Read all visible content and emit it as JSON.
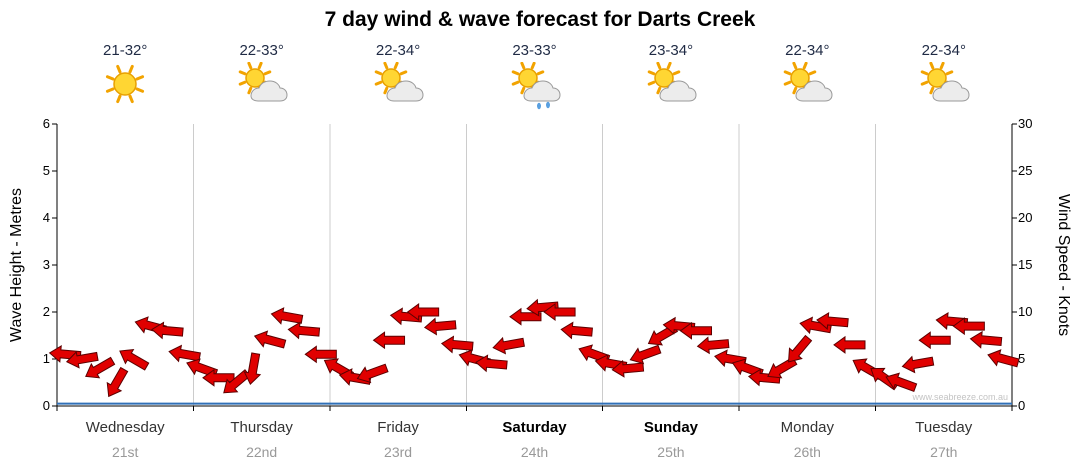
{
  "title": "7 day wind & wave forecast for Darts Creek",
  "watermark": "www.seabreeze.com.au",
  "axes": {
    "left_label": "Wave Height - Metres",
    "right_label": "Wind Speed - Knots"
  },
  "days": [
    {
      "name": "Wednesday",
      "date": "21st",
      "temperature": "21-32°",
      "icon": "sunny",
      "weekend": false
    },
    {
      "name": "Thursday",
      "date": "22nd",
      "temperature": "22-33°",
      "icon": "sun-cloud",
      "weekend": false
    },
    {
      "name": "Friday",
      "date": "23rd",
      "temperature": "22-34°",
      "icon": "sun-cloud",
      "weekend": false
    },
    {
      "name": "Saturday",
      "date": "24th",
      "temperature": "23-33°",
      "icon": "sun-cloud-rain",
      "weekend": true
    },
    {
      "name": "Sunday",
      "date": "25th",
      "temperature": "23-34°",
      "icon": "sun-cloud",
      "weekend": true
    },
    {
      "name": "Monday",
      "date": "26th",
      "temperature": "22-34°",
      "icon": "sun-cloud",
      "weekend": false
    },
    {
      "name": "Tuesday",
      "date": "27th",
      "temperature": "22-34°",
      "icon": "sun-cloud",
      "weekend": false
    }
  ],
  "colors": {
    "arrow_fill": "#e00000",
    "arrow_outline": "#5c0000",
    "wave_line": "#3070b8",
    "day_separator": "#cccccc",
    "axis": "#000000",
    "temperature_text": "#1f2a44",
    "day_text": "#333333",
    "weekend_day_text": "#000000",
    "date_text": "#999999",
    "watermark_text": "#c4c4c4"
  },
  "chart_data": {
    "type": "scatter",
    "subtype": "wind-direction-arrow-glyphs-over-time-plus-wave-line",
    "title": "7 day wind & wave forecast for Darts Creek",
    "x_categories": [
      "Wednesday 21st",
      "Thursday 22nd",
      "Friday 23rd",
      "Saturday 24th",
      "Sunday 25th",
      "Monday 26th",
      "Tuesday 27th"
    ],
    "samples_per_day": 8,
    "left_axis": {
      "label": "Wave Height - Metres",
      "range": [
        0,
        6
      ],
      "ticks": [
        0,
        1,
        2,
        3,
        4,
        5,
        6
      ]
    },
    "right_axis": {
      "label": "Wind Speed - Knots",
      "range": [
        0,
        30
      ],
      "ticks": [
        0,
        5,
        10,
        15,
        20,
        25,
        30
      ]
    },
    "grid": "vertical day-separator lines only, no horizontal gridlines",
    "legend": "none",
    "series": [
      {
        "name": "Wind Speed",
        "axis": "right",
        "unit": "knots",
        "style": "red-arrow-glyphs",
        "values_by_day": [
          [
            5.5,
            5,
            4,
            2.5,
            5,
            8.5,
            8,
            5.5
          ],
          [
            4,
            3,
            2.5,
            4,
            7,
            9.5,
            8,
            5.5
          ],
          [
            4,
            3,
            3.5,
            7,
            9.5,
            10,
            8.5,
            6.5
          ],
          [
            5,
            4.5,
            6.5,
            9.5,
            10.5,
            10,
            8,
            5.5
          ],
          [
            4.5,
            4,
            5.5,
            7.5,
            8.5,
            8,
            6.5,
            5
          ],
          [
            4,
            3,
            4,
            6,
            8.5,
            9,
            6.5,
            4
          ],
          [
            3,
            2.5,
            4.5,
            7,
            9,
            8.5,
            7,
            5
          ]
        ],
        "directions_deg_by_day": [
          [
            185,
            170,
            150,
            120,
            210,
            195,
            185,
            190
          ],
          [
            200,
            180,
            140,
            100,
            195,
            190,
            185,
            180
          ],
          [
            210,
            190,
            160,
            180,
            185,
            180,
            175,
            185
          ],
          [
            195,
            185,
            170,
            180,
            175,
            180,
            185,
            200
          ],
          [
            190,
            175,
            160,
            150,
            185,
            180,
            175,
            190
          ],
          [
            200,
            185,
            150,
            130,
            190,
            185,
            180,
            210
          ],
          [
            215,
            200,
            170,
            180,
            185,
            180,
            185,
            195
          ]
        ]
      },
      {
        "name": "Wave Height",
        "axis": "left",
        "unit": "m",
        "style": "line",
        "shape": "flat",
        "constant_value_m": 0.05
      }
    ]
  }
}
